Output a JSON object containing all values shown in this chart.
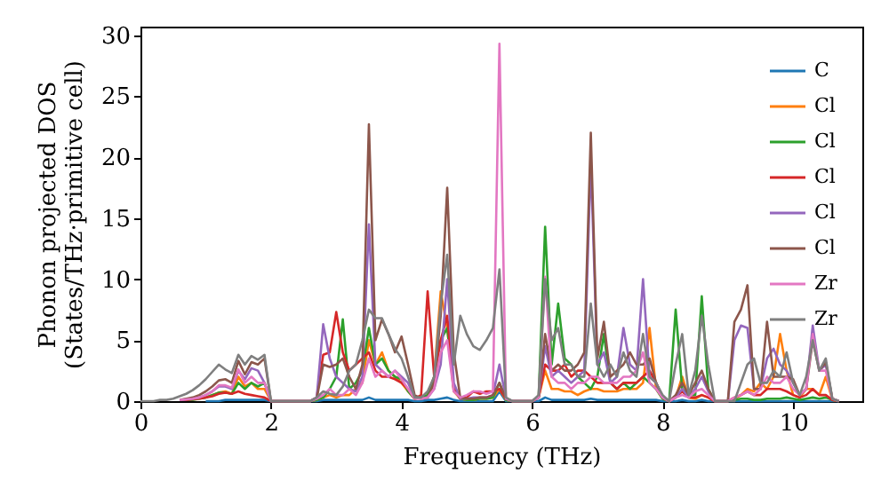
{
  "chart_data": {
    "type": "line",
    "xlabel": "Frequency (THz)",
    "ylabel": "Phonon projected DOS\n(States/THz·primitive cell)",
    "xlim": [
      0,
      11.06
    ],
    "ylim": [
      0,
      30.7
    ],
    "xticks": [
      0,
      2,
      4,
      6,
      8,
      10
    ],
    "yticks": [
      0,
      5,
      10,
      15,
      20,
      25,
      30
    ],
    "legend": "top right",
    "x": [
      0,
      0.1,
      0.2,
      0.3,
      0.4,
      0.5,
      0.6,
      0.7,
      0.8,
      0.9,
      1,
      1.1,
      1.2,
      1.3,
      1.4,
      1.5,
      1.6,
      1.7,
      1.8,
      1.9,
      2,
      2.1,
      2.2,
      2.3,
      2.4,
      2.5,
      2.6,
      2.7,
      2.8,
      2.9,
      3,
      3.1,
      3.2,
      3.3,
      3.4,
      3.5,
      3.6,
      3.7,
      3.8,
      3.9,
      4,
      4.1,
      4.2,
      4.3,
      4.4,
      4.5,
      4.6,
      4.7,
      4.8,
      4.9,
      5,
      5.1,
      5.2,
      5.3,
      5.4,
      5.5,
      5.6,
      5.7,
      5.8,
      5.9,
      6,
      6.1,
      6.2,
      6.3,
      6.4,
      6.5,
      6.6,
      6.7,
      6.8,
      6.9,
      7,
      7.1,
      7.2,
      7.3,
      7.4,
      7.5,
      7.6,
      7.7,
      7.8,
      7.9,
      8,
      8.1,
      8.2,
      8.3,
      8.4,
      8.5,
      8.6,
      8.7,
      8.8,
      8.9,
      9,
      9.1,
      9.2,
      9.3,
      9.4,
      9.5,
      9.6,
      9.7,
      9.8,
      9.9,
      10,
      10.1,
      10.2,
      10.3,
      10.4,
      10.5,
      10.6,
      10.7
    ],
    "series": [
      {
        "name": "C",
        "color": "#1f77b4",
        "values": [
          null,
          null,
          null,
          null,
          null,
          null,
          null,
          null,
          null,
          null,
          0,
          0,
          0,
          0.1,
          0.1,
          0.1,
          0.1,
          0.1,
          0.1,
          0.1,
          0,
          0,
          0,
          0,
          0,
          0,
          0,
          0,
          0.1,
          0.1,
          0.1,
          0.1,
          0.1,
          0.1,
          0.1,
          0.3,
          0.1,
          0.1,
          0.1,
          0.1,
          0.1,
          0.1,
          0,
          0,
          0.1,
          0.1,
          0.2,
          0.3,
          0.1,
          0,
          0,
          0,
          0,
          0,
          0,
          0.8,
          0,
          0,
          0,
          0,
          0,
          0,
          0.3,
          0.1,
          0.1,
          0.1,
          0.1,
          0.1,
          0.1,
          0.2,
          0.1,
          0.1,
          0.1,
          0.1,
          0.1,
          0.1,
          0.1,
          0.1,
          0.1,
          0.1,
          0,
          0,
          0,
          0.1,
          0,
          0,
          0.1,
          0,
          0,
          0,
          0,
          0,
          0,
          0,
          0,
          0,
          0,
          0,
          0,
          0,
          0,
          0,
          0,
          0,
          0,
          0,
          0,
          0
        ]
      },
      {
        "name": "Cl",
        "color": "#ff7f0e",
        "values": [
          null,
          null,
          null,
          null,
          null,
          null,
          null,
          null,
          null,
          null,
          0.3,
          0.5,
          0.7,
          0.8,
          0.6,
          2.0,
          1.2,
          1.5,
          1.0,
          1.0,
          0,
          0,
          0,
          0,
          0,
          0,
          0,
          0.1,
          0.3,
          0.5,
          0.3,
          0.5,
          0.5,
          1.0,
          1.5,
          5.0,
          3.0,
          4.0,
          2.5,
          2.0,
          1.5,
          0.8,
          0.2,
          0.3,
          0.5,
          2.0,
          9.0,
          6.0,
          0.8,
          0.2,
          0.1,
          0.1,
          0.2,
          0.2,
          0.3,
          1.0,
          0.1,
          0,
          0,
          0,
          0,
          0.3,
          2.5,
          1.0,
          1.0,
          0.8,
          0.8,
          0.5,
          0.8,
          1.0,
          1.0,
          0.8,
          0.8,
          0.8,
          1.0,
          1.0,
          1.0,
          1.5,
          6.0,
          1.0,
          0.2,
          0,
          0.3,
          2.0,
          0.3,
          0.2,
          0.5,
          0.3,
          0,
          0,
          0,
          0.2,
          0.5,
          1.0,
          0.8,
          1.5,
          1.0,
          2.0,
          5.5,
          2.5,
          0.5,
          0.3,
          1.0,
          1.0,
          0.5,
          2.0,
          0.1,
          0
        ]
      },
      {
        "name": "Cl",
        "color": "#2ca02c",
        "values": [
          null,
          null,
          null,
          null,
          null,
          null,
          0.1,
          0.1,
          0.1,
          0.2,
          0.3,
          0.5,
          0.7,
          0.7,
          0.6,
          1.5,
          1.0,
          1.5,
          1.2,
          1.5,
          0,
          0,
          0,
          0,
          0,
          0,
          0,
          0.1,
          0.3,
          1.0,
          2.0,
          6.7,
          1.0,
          1.5,
          2.5,
          6.0,
          3.0,
          3.5,
          2.5,
          2.0,
          1.8,
          0.8,
          0.2,
          0.3,
          0.5,
          2.0,
          5.0,
          6.0,
          1.0,
          0.2,
          0.1,
          0.1,
          0.2,
          0.2,
          0.3,
          1.5,
          0.1,
          0,
          0,
          0,
          0,
          0.3,
          14.3,
          3.0,
          8.0,
          3.5,
          3.0,
          2.0,
          1.5,
          1.0,
          2.0,
          5.5,
          1.5,
          1.0,
          1.5,
          1.0,
          1.5,
          2.0,
          1.5,
          1.0,
          0.2,
          0,
          7.5,
          1.0,
          0.5,
          0.5,
          8.6,
          1.0,
          0,
          0,
          0,
          0.1,
          0.2,
          0.2,
          0.1,
          0.1,
          0.2,
          0.2,
          0.2,
          0.3,
          0.2,
          0.1,
          0.2,
          0.3,
          0.2,
          0.3,
          0.1,
          0
        ]
      },
      {
        "name": "Cl",
        "color": "#d62728",
        "values": [
          null,
          null,
          null,
          null,
          null,
          null,
          0.1,
          0.1,
          0.15,
          0.2,
          0.3,
          0.4,
          0.6,
          0.7,
          0.6,
          0.8,
          0.6,
          0.5,
          0.4,
          0.3,
          0,
          0,
          0,
          0,
          0,
          0,
          0,
          0.3,
          3.8,
          4.0,
          7.3,
          4.0,
          2.5,
          3.0,
          3.5,
          4.0,
          2.5,
          2.0,
          2.0,
          1.8,
          1.5,
          1.0,
          0.2,
          0.5,
          9.0,
          2.0,
          5.0,
          7.0,
          1.0,
          0.2,
          0.3,
          0.8,
          0.6,
          0.8,
          0.8,
          1.0,
          0.2,
          0,
          0,
          0,
          0,
          0.3,
          3.0,
          2.5,
          2.5,
          3.0,
          2.0,
          2.5,
          2.5,
          2.0,
          1.5,
          1.5,
          1.5,
          1.0,
          1.5,
          1.5,
          1.5,
          2.0,
          2.5,
          1.5,
          0.3,
          0,
          0.3,
          0.8,
          0.3,
          0.3,
          0.5,
          0.3,
          0,
          0,
          0,
          0.3,
          0.5,
          0.8,
          0.5,
          0.5,
          1.0,
          1.0,
          1.0,
          0.8,
          0.5,
          0.3,
          0.5,
          1.0,
          0.5,
          0.5,
          0.1,
          0
        ]
      },
      {
        "name": "Cl",
        "color": "#9467bd",
        "values": [
          null,
          null,
          null,
          null,
          null,
          null,
          0.1,
          0.15,
          0.2,
          0.3,
          0.5,
          0.8,
          1.2,
          1.2,
          1.0,
          2.5,
          1.8,
          2.7,
          2.5,
          1.5,
          0,
          0,
          0,
          0,
          0,
          0,
          0,
          0.3,
          6.3,
          3.5,
          2.0,
          1.5,
          1.0,
          0.8,
          2.0,
          14.5,
          3.0,
          2.5,
          2.0,
          2.5,
          2.0,
          1.5,
          0.3,
          0.2,
          0.3,
          1.0,
          3.0,
          10.0,
          1.5,
          0.2,
          0.2,
          0.3,
          0.3,
          0.3,
          0.5,
          3.0,
          0.2,
          0,
          0,
          0,
          0,
          0.3,
          4.5,
          2.0,
          2.5,
          2.0,
          1.5,
          2.0,
          2.5,
          19.7,
          3.0,
          4.0,
          1.5,
          2.0,
          6.0,
          3.0,
          2.5,
          10.0,
          2.0,
          1.5,
          0.3,
          0,
          0.3,
          1.0,
          0.3,
          1.0,
          2.0,
          0.8,
          0,
          0,
          0,
          5.0,
          6.2,
          6.0,
          1.0,
          1.0,
          3.5,
          4.3,
          3.0,
          2.5,
          1.5,
          0.5,
          1.0,
          6.2,
          2.5,
          3.0,
          0.2,
          0
        ]
      },
      {
        "name": "Cl",
        "color": "#8c564b",
        "values": [
          null,
          null,
          null,
          null,
          null,
          null,
          0.1,
          0.2,
          0.3,
          0.5,
          0.8,
          1.2,
          1.7,
          1.8,
          1.5,
          3.3,
          2.2,
          3.2,
          3.0,
          3.5,
          0,
          0,
          0,
          0,
          0,
          0,
          0,
          0.2,
          3.0,
          2.8,
          3.0,
          3.5,
          2.0,
          1.0,
          3.0,
          22.7,
          5.0,
          6.7,
          5.5,
          4.0,
          5.3,
          3.0,
          0.5,
          0.2,
          0.3,
          1.5,
          7.0,
          17.5,
          4.0,
          0.3,
          0.2,
          0.2,
          0.3,
          0.3,
          0.5,
          1.5,
          0.2,
          0,
          0,
          0,
          0,
          0.3,
          5.5,
          2.5,
          3.0,
          2.5,
          2.5,
          3.0,
          4.0,
          22.0,
          3.5,
          6.5,
          2.0,
          2.5,
          3.0,
          4.0,
          3.0,
          3.0,
          3.5,
          1.5,
          0.3,
          0,
          0.5,
          1.5,
          0.5,
          1.5,
          2.5,
          1.0,
          0,
          0,
          0,
          6.5,
          7.5,
          9.5,
          1.0,
          1.0,
          6.5,
          2.0,
          2.0,
          2.0,
          1.8,
          0.5,
          1.0,
          5.0,
          2.5,
          3.2,
          0.2,
          0
        ]
      },
      {
        "name": "Zr",
        "color": "#e377c2",
        "values": [
          null,
          null,
          null,
          null,
          null,
          null,
          0.1,
          0.15,
          0.2,
          0.3,
          0.5,
          0.8,
          1.3,
          1.3,
          1.1,
          2.6,
          1.5,
          2.0,
          1.5,
          1.5,
          0,
          0,
          0,
          0,
          0,
          0,
          0,
          0.2,
          0.5,
          1.0,
          0.5,
          0.5,
          1.0,
          0.5,
          1.5,
          3.5,
          2.0,
          2.5,
          2.0,
          2.5,
          1.8,
          1.0,
          0.2,
          0.2,
          0.3,
          1.0,
          4.0,
          5.0,
          0.8,
          0.3,
          0.5,
          0.8,
          0.8,
          0.6,
          0.8,
          29.3,
          0.2,
          0,
          0,
          0,
          0,
          0.3,
          10.2,
          2.0,
          1.5,
          1.5,
          1.0,
          1.5,
          1.5,
          2.0,
          2.0,
          1.5,
          1.5,
          1.5,
          2.0,
          2.0,
          2.5,
          4.0,
          1.5,
          1.0,
          0.3,
          0,
          0.3,
          0.5,
          0.3,
          0.8,
          1.0,
          0.5,
          0,
          0,
          0,
          0.3,
          0.5,
          0.8,
          0.5,
          1.0,
          2.0,
          1.5,
          1.5,
          2.0,
          1.0,
          0.5,
          1.0,
          5.5,
          2.5,
          2.5,
          0.2,
          0
        ]
      },
      {
        "name": "Zr",
        "color": "#7f7f7f",
        "values": [
          0,
          0,
          0,
          0.1,
          0.1,
          0.2,
          0.4,
          0.6,
          0.9,
          1.3,
          1.8,
          2.4,
          3.0,
          2.6,
          2.3,
          3.8,
          3.0,
          3.7,
          3.4,
          3.8,
          0,
          0,
          0,
          0,
          0,
          0,
          0,
          0.3,
          0.8,
          0.6,
          0.5,
          1.2,
          2.5,
          3.0,
          5.0,
          7.5,
          6.8,
          6.8,
          5.5,
          4.3,
          3.5,
          2.0,
          0.3,
          0.3,
          0.8,
          2.0,
          8.0,
          12.0,
          3.0,
          7.0,
          5.5,
          4.5,
          4.2,
          5.0,
          6.0,
          10.8,
          0.3,
          0,
          0,
          0,
          0,
          0.5,
          10.0,
          5.0,
          6.0,
          3.0,
          3.0,
          2.0,
          2.0,
          8.0,
          3.0,
          2.0,
          3.0,
          2.0,
          4.0,
          2.5,
          2.0,
          5.5,
          2.0,
          1.5,
          0.5,
          0,
          3.0,
          5.5,
          0.5,
          2.5,
          7.0,
          3.0,
          0,
          0,
          0,
          0,
          1.5,
          3.0,
          3.5,
          1.5,
          1.5,
          2.5,
          2.0,
          4.0,
          1.5,
          0.5,
          2.0,
          5.0,
          2.5,
          3.5,
          0.2,
          0
        ]
      }
    ]
  }
}
